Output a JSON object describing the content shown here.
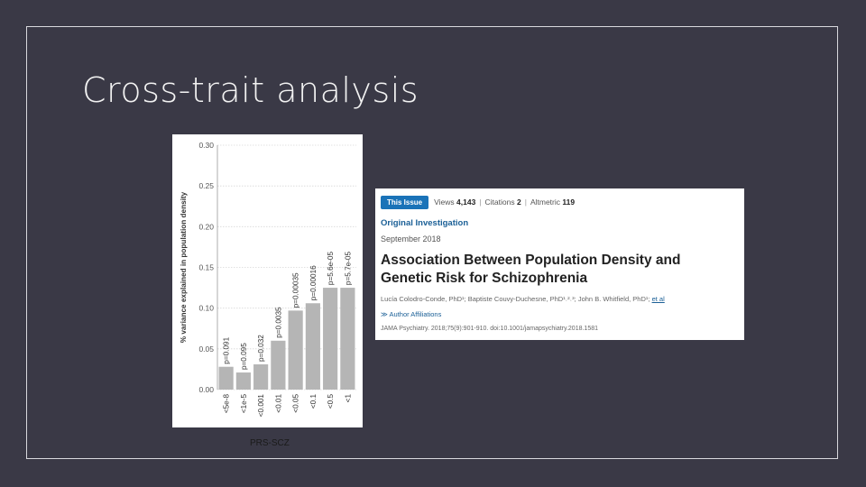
{
  "slide": {
    "title": "Cross-trait analysis"
  },
  "chart_caption": "PRS-SCZ",
  "chart_data": {
    "type": "bar",
    "title": "",
    "xlabel": "",
    "ylabel": "% variance explained in population density",
    "ylim": [
      0,
      0.3
    ],
    "yticks": [
      "0.00",
      "0.05",
      "0.10",
      "0.15",
      "0.20",
      "0.25",
      "0.30"
    ],
    "categories": [
      "<5e-8",
      "<1e-5",
      "<0.001",
      "<0.01",
      "<0.05",
      "<0.1",
      "<0.5",
      "<1"
    ],
    "values": [
      0.028,
      0.021,
      0.031,
      0.06,
      0.097,
      0.106,
      0.125,
      0.125
    ],
    "annotations": [
      "p=0.091",
      "p=0.095",
      "p=0.032",
      "p=0.0035",
      "p=0.00035",
      "p=0.00016",
      "p=5.6e-05",
      "p=5.7e-05"
    ],
    "bar_color": "#b5b5b5",
    "grid": true
  },
  "article": {
    "tab_label": "This Issue",
    "views_label": "Views",
    "views_value": "4,143",
    "citations_label": "Citations",
    "citations_value": "2",
    "altmetric_label": "Altmetric",
    "altmetric_value": "119",
    "separator": "|",
    "type": "Original Investigation",
    "date": "September 2018",
    "title": "Association Between Population Density and Genetic Risk for Schizophrenia",
    "authors": "Lucía Colodro-Conde, PhD¹; Baptiste Couvy-Duchesne, PhD¹˒²˒³; John B. Whitfield, PhD¹;",
    "authors_etal": "et al",
    "affiliations_link": "≫ Author Affiliations",
    "citation": "JAMA Psychiatry. 2018;75(9):901-910. doi:10.1001/jamapsychiatry.2018.1581"
  },
  "colors": {
    "background": "#3a3946",
    "frame": "#d9d9de",
    "accent": "#1a73b8",
    "link": "#1a5f96"
  }
}
